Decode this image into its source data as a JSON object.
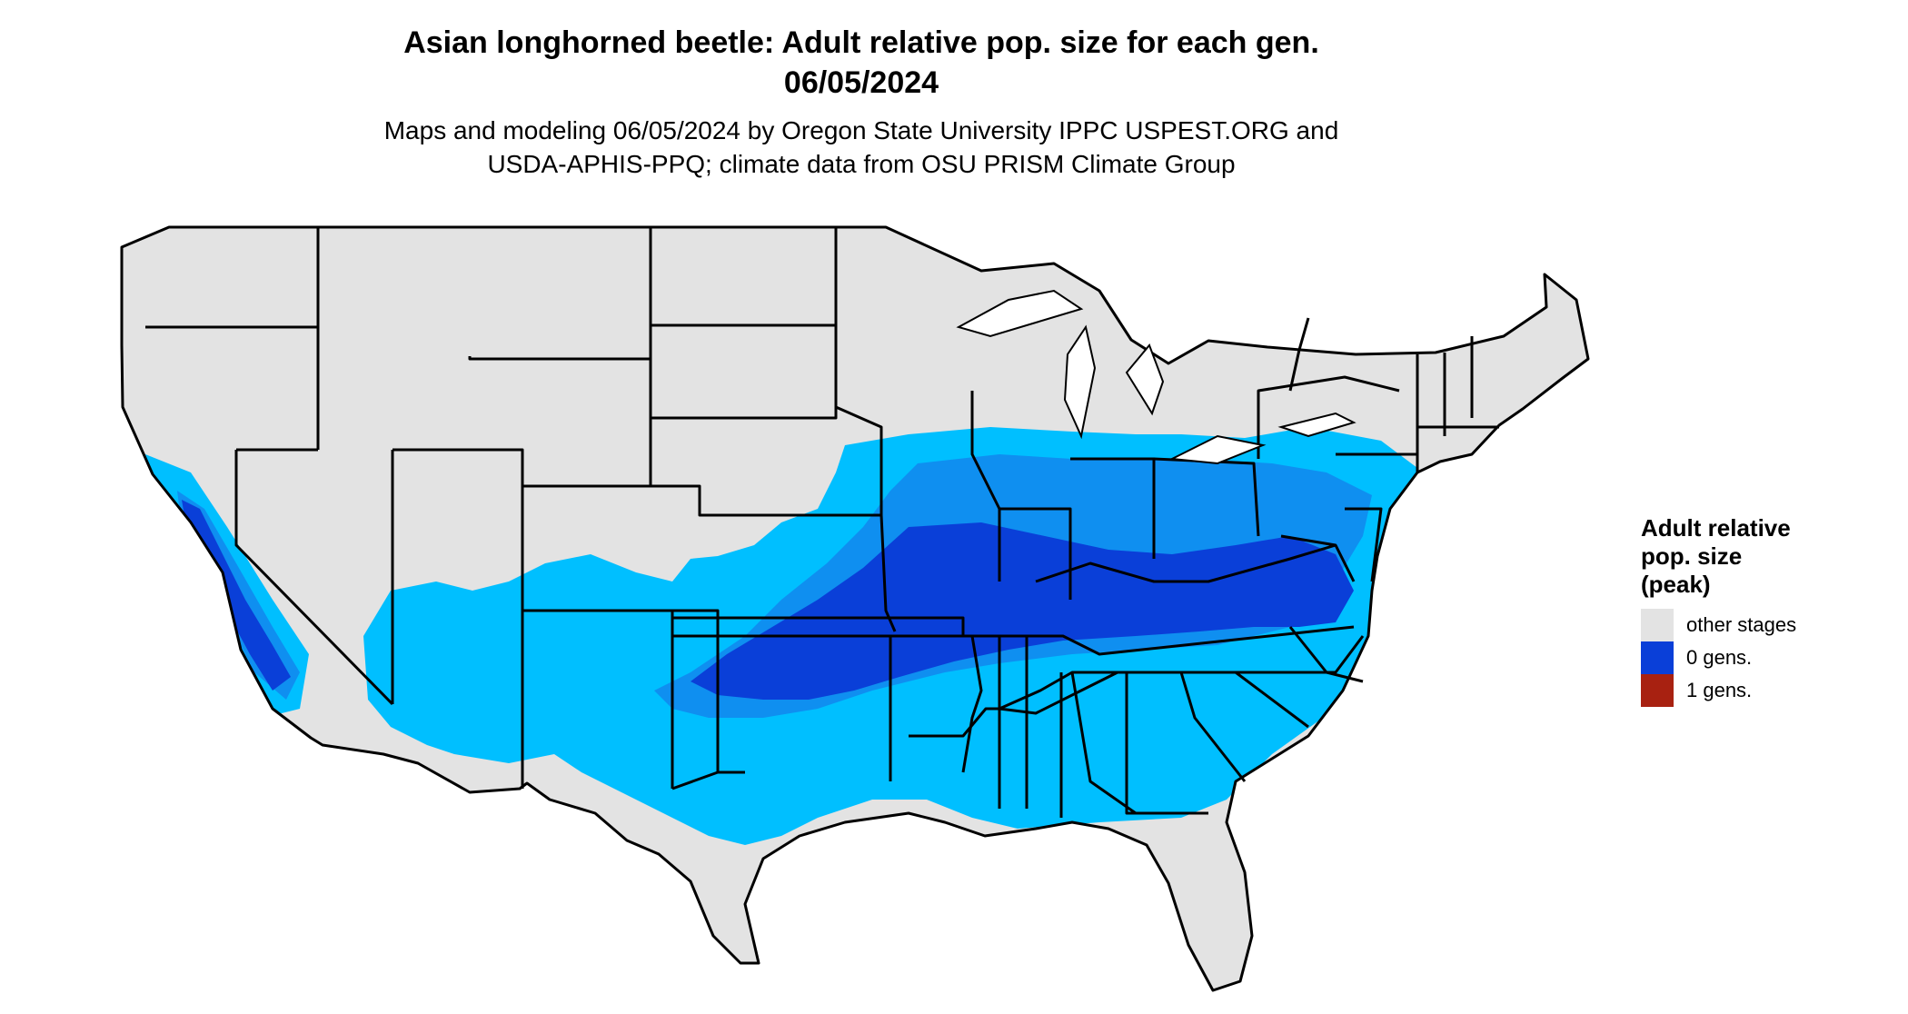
{
  "header": {
    "title_line1": "Asian longhorned beetle: Adult relative pop. size for each gen.",
    "title_line2": "06/05/2024",
    "subtitle_line1": "Maps and modeling 06/05/2024 by Oregon State University IPPC USPEST.ORG and",
    "subtitle_line2": "USDA-APHIS-PPQ; climate data from OSU PRISM Climate Group"
  },
  "legend": {
    "title_line1": "Adult relative",
    "title_line2": "pop. size",
    "title_line3": "(peak)",
    "items": [
      {
        "label": "other stages",
        "color": "#e3e3e3"
      },
      {
        "label": "0 gens.",
        "color": "#0a3fd8"
      },
      {
        "label": "1 gens.",
        "color": "#a82111"
      }
    ]
  },
  "colors": {
    "background": "#ffffff",
    "land_other": "#e3e3e3",
    "light_blue": "#00bfff",
    "mid_blue": "#0f8ff0",
    "dark_blue": "#0a3fd8",
    "state_lines": "#000000"
  }
}
